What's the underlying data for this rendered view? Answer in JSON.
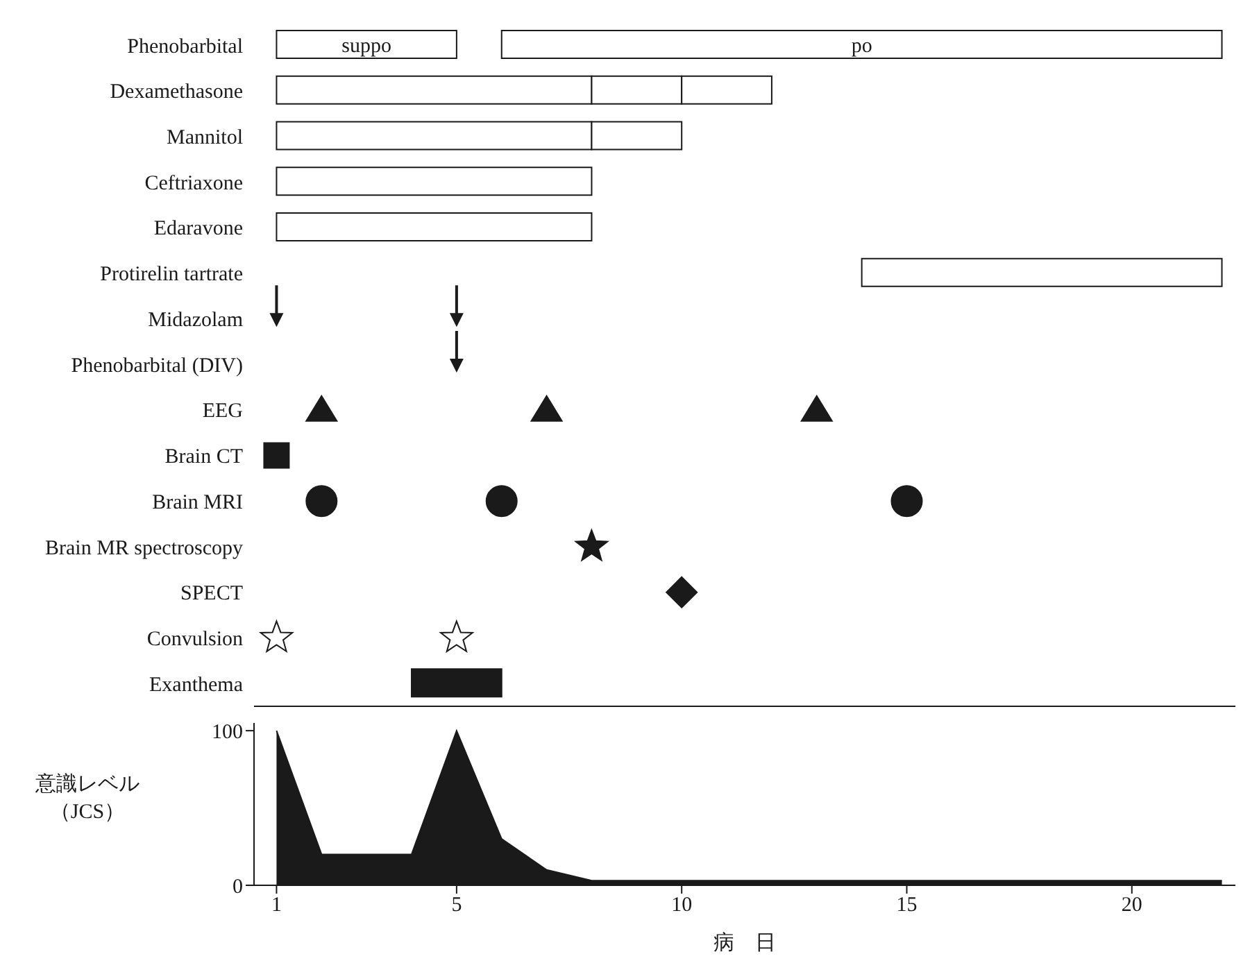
{
  "chart_data": [
    {
      "type": "bar",
      "orientation": "horizontal",
      "categories": [
        "Phenobarbital",
        "Dexamethasone",
        "Mannitol",
        "Ceftriaxone",
        "Edaravone",
        "Protirelin tartrate",
        "Midazolam",
        "Phenobarbital (DIV)",
        "EEG",
        "Brain CT",
        "Brain MRI",
        "Brain MR spectroscopy",
        "SPECT",
        "Convulsion",
        "Exanthema"
      ],
      "xlim": [
        0.5,
        22.3
      ],
      "xticks": [
        1,
        5,
        10,
        15,
        20
      ],
      "tick_labels": "y",
      "series": [
        {
          "color": "#ffffff",
          "values": [
            4,
            7,
            7,
            7,
            7,
            8,
            null,
            null,
            null,
            null,
            null,
            null,
            null,
            null,
            null
          ],
          "base": [
            1,
            1,
            1,
            1,
            1,
            14,
            null,
            null,
            null,
            null,
            null,
            null,
            null,
            null,
            null
          ],
          "value_labels": [
            "suppo",
            null,
            null,
            null,
            null,
            null,
            null,
            null,
            null,
            null,
            null,
            null,
            null,
            null,
            null
          ]
        },
        {
          "color": "#ffffff",
          "values": [
            16,
            2,
            2,
            null,
            null,
            null,
            null,
            null,
            null,
            null,
            null,
            null,
            null,
            null,
            null
          ],
          "base": [
            6,
            8,
            8,
            null,
            null,
            null,
            null,
            null,
            null,
            null,
            null,
            null,
            null,
            null,
            null
          ],
          "value_labels": [
            "po",
            null,
            null,
            null,
            null,
            null,
            null,
            null,
            null,
            null,
            null,
            null,
            null,
            null,
            null
          ]
        },
        {
          "color": "#ffffff",
          "values": [
            null,
            2,
            null,
            null,
            null,
            null,
            null,
            null,
            null,
            null,
            null,
            null,
            null,
            null,
            null
          ],
          "base": [
            null,
            10,
            null,
            null,
            null,
            null,
            null,
            null,
            null,
            null,
            null,
            null,
            null,
            null,
            null
          ]
        },
        {
          "color": "#1a1a1a",
          "values": [
            null,
            null,
            null,
            null,
            null,
            null,
            null,
            null,
            null,
            null,
            null,
            null,
            null,
            null,
            2
          ],
          "base": [
            null,
            null,
            null,
            null,
            null,
            null,
            null,
            null,
            null,
            null,
            null,
            null,
            null,
            null,
            4
          ]
        },
        {
          "type": "scatter",
          "color": "#1a1a1a",
          "x": [
            "Midazolam",
            "Midazolam"
          ],
          "values": [
            1,
            5
          ]
        },
        {
          "type": "scatter",
          "color": "#1a1a1a",
          "x": [
            "Phenobarbital (DIV)"
          ],
          "values": [
            5
          ]
        },
        {
          "type": "scatter",
          "marker": "triangle",
          "color": "#1a1a1a",
          "x": [
            "EEG",
            "EEG",
            "EEG"
          ],
          "values": [
            2,
            7,
            13
          ]
        },
        {
          "type": "scatter",
          "marker": "square",
          "color": "#1a1a1a",
          "x": [
            "Brain CT"
          ],
          "values": [
            1
          ]
        },
        {
          "type": "scatter",
          "marker": "circle",
          "color": "#1a1a1a",
          "x": [
            "Brain MRI",
            "Brain MRI",
            "Brain MRI"
          ],
          "values": [
            2,
            6,
            15
          ]
        },
        {
          "type": "scatter",
          "marker": "star",
          "color": "#1a1a1a",
          "x": [
            "Brain MR spectroscopy"
          ],
          "values": [
            8
          ]
        },
        {
          "type": "scatter",
          "marker": "diamond",
          "color": "#1a1a1a",
          "x": [
            "SPECT"
          ],
          "values": [
            10
          ]
        },
        {
          "type": "scatter",
          "marker": "star",
          "color": "#ffffff",
          "x": [
            "Convulsion",
            "Convulsion"
          ],
          "values": [
            1,
            5
          ]
        }
      ]
    },
    {
      "type": "area",
      "x": [
        1,
        2,
        4,
        5,
        6,
        7,
        8,
        22
      ],
      "values": [
        100,
        20,
        20,
        100,
        30,
        10,
        3,
        3
      ],
      "color": "#1a1a1a",
      "xlim": [
        0.5,
        22.3
      ],
      "xticks": [
        1,
        5,
        10,
        15,
        20
      ],
      "ylim": [
        0,
        105
      ],
      "yticks": [
        0,
        100
      ],
      "xlabel": "病　日",
      "ylabel": "意識レベル（JCS）"
    }
  ]
}
